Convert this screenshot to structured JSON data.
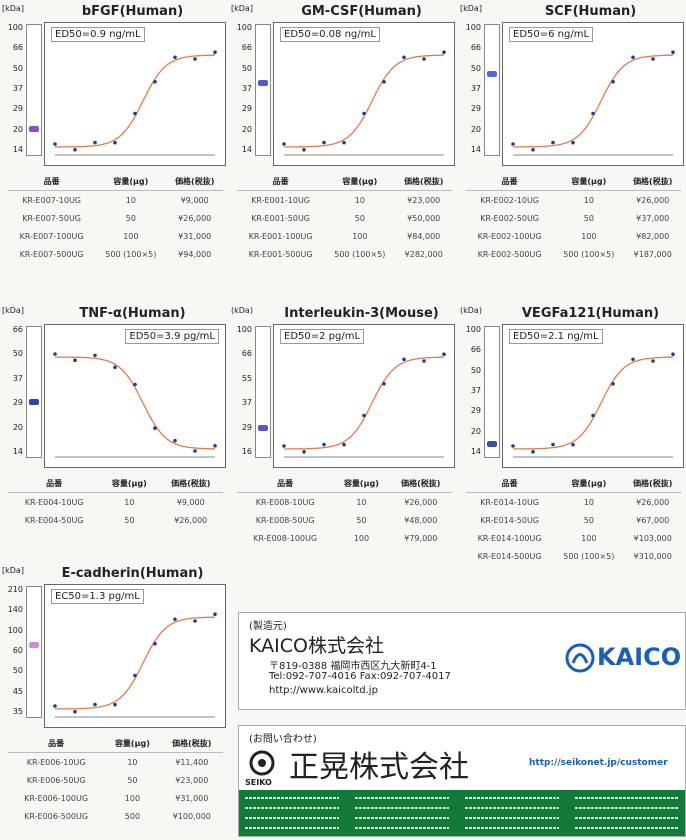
{
  "panels": [
    {
      "title": "bFGF(Human)",
      "unit": "[kDa]",
      "markers": [
        "100",
        "66",
        "50",
        "37",
        "29",
        "20",
        "14"
      ],
      "ed50": "ED50=0.9 ng/mL",
      "table": {
        "header": [
          "品番",
          "容量(μg)",
          "価格(税抜)"
        ],
        "rows": [
          [
            "KR-E007-10UG",
            "10",
            "¥9,000"
          ],
          [
            "KR-E007-50UG",
            "50",
            "¥26,000"
          ],
          [
            "KR-E007-100UG",
            "100",
            "¥31,000"
          ],
          [
            "KR-E007-500UG",
            "500 (100×5)",
            "¥94,000"
          ]
        ]
      }
    },
    {
      "title": "GM-CSF(Human)",
      "unit": "[kDa]",
      "markers": [
        "100",
        "66",
        "50",
        "37",
        "29",
        "20",
        "14"
      ],
      "ed50": "ED50=0.08 ng/mL",
      "table": {
        "header": [
          "品番",
          "容量(μg)",
          "価格(税抜)"
        ],
        "rows": [
          [
            "KR-E001-10UG",
            "10",
            "¥23,000"
          ],
          [
            "KR-E001-50UG",
            "50",
            "¥50,000"
          ],
          [
            "KR-E001-100UG",
            "100",
            "¥84,000"
          ],
          [
            "KR-E001-500UG",
            "500 (100×5)",
            "¥282,000"
          ]
        ]
      }
    },
    {
      "title": "SCF(Human)",
      "unit": "[kDa]",
      "markers": [
        "100",
        "66",
        "50",
        "37",
        "29",
        "20",
        "14"
      ],
      "ed50": "ED50=6 ng/mL",
      "table": {
        "header": [
          "品番",
          "容量(μg)",
          "価格(税抜)"
        ],
        "rows": [
          [
            "KR-E002-10UG",
            "10",
            "¥26,000"
          ],
          [
            "KR-E002-50UG",
            "50",
            "¥37,000"
          ],
          [
            "KR-E002-100UG",
            "100",
            "¥82,000"
          ],
          [
            "KR-E002-500UG",
            "500 (100×5)",
            "¥187,000"
          ]
        ]
      }
    },
    {
      "title": "TNF-α(Human)",
      "unit": "[kDa]",
      "markers": [
        "66",
        "50",
        "37",
        "29",
        "20",
        "14"
      ],
      "ed50": "ED50=3.9 pg/mL",
      "table": {
        "header": [
          "品番",
          "容量(μg)",
          "価格(税抜)"
        ],
        "rows": [
          [
            "KR-E004-10UG",
            "10",
            "¥9,000"
          ],
          [
            "KR-E004-50UG",
            "50",
            "¥26,000"
          ]
        ]
      }
    },
    {
      "title": "Interleukin-3(Mouse)",
      "unit": "(kDa)",
      "markers": [
        "100",
        "66",
        "55",
        "37",
        "29",
        "16"
      ],
      "ed50": "ED50=2 pg/mL",
      "table": {
        "header": [
          "品番",
          "容量(μg)",
          "価格(税抜)"
        ],
        "rows": [
          [
            "KR-E008-10UG",
            "10",
            "¥26,000"
          ],
          [
            "KR-E008-50UG",
            "50",
            "¥48,000"
          ],
          [
            "KR-E008-100UG",
            "100",
            "¥79,000"
          ]
        ]
      }
    },
    {
      "title": "VEGFa121(Human)",
      "unit": "(kDa)",
      "markers": [
        "100",
        "66",
        "50",
        "37",
        "29",
        "20",
        "14"
      ],
      "ed50": "ED50=2.1 ng/mL",
      "table": {
        "header": [
          "品番",
          "容量(μg)",
          "価格(税抜)"
        ],
        "rows": [
          [
            "KR-E014-10UG",
            "10",
            "¥26,000"
          ],
          [
            "KR-E014-50UG",
            "50",
            "¥67,000"
          ],
          [
            "KR-E014-100UG",
            "100",
            "¥103,000"
          ],
          [
            "KR-E014-500UG",
            "500 (100×5)",
            "¥310,000"
          ]
        ]
      }
    },
    {
      "title": "E-cadherin(Human)",
      "unit": "[kDa]",
      "markers": [
        "210",
        "140",
        "100",
        "60",
        "50",
        "45",
        "35"
      ],
      "ed50": "EC50=1.3 pg/mL",
      "table": {
        "header": [
          "品番",
          "容量(μg)",
          "価格(税抜)"
        ],
        "rows": [
          [
            "KR-E006-10UG",
            "10",
            "¥11,400"
          ],
          [
            "KR-E006-50UG",
            "50",
            "¥23,000"
          ],
          [
            "KR-E006-100UG",
            "100",
            "¥31,000"
          ],
          [
            "KR-E006-500UG",
            "500",
            "¥100,000"
          ]
        ]
      }
    }
  ],
  "maker": {
    "label": "(製造元)",
    "company": "KAICO株式会社",
    "address": "〒819-0388 福岡市西区九大新町4-1",
    "phone": "Tel:092-707-4016  Fax:092-707-4017",
    "url": "http://www.kaicoltd.jp",
    "logo": "KAICO"
  },
  "contact": {
    "label": "(お問い合わせ)",
    "company": "正晃株式会社",
    "brand": "SEIKO",
    "url": "http://seikonet.jp/customer"
  }
}
